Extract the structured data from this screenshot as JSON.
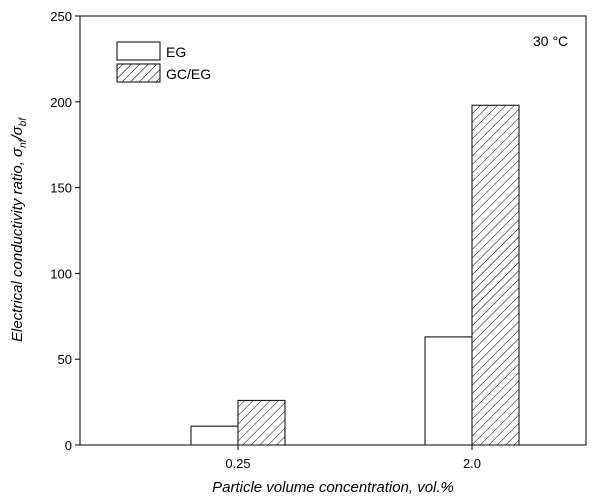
{
  "chart_data": {
    "type": "bar",
    "xlabel": "Particle volume concentration, vol.%",
    "ylabel_prefix": "Electrical conductivity ratio, ",
    "ylabel_sigma1": "σ",
    "ylabel_sub1": "nf",
    "ylabel_slash": "/",
    "ylabel_sigma2": "σ",
    "ylabel_sub2": "bf",
    "annotation": "30 °C",
    "categories": [
      "0.25",
      "2.0"
    ],
    "series": [
      {
        "name": "EG",
        "values": [
          11,
          63
        ],
        "pattern": "none"
      },
      {
        "name": "GC/EG",
        "values": [
          26,
          198
        ],
        "pattern": "hatch"
      }
    ],
    "ylim": [
      0,
      250
    ],
    "yticks": [
      "0",
      "50",
      "100",
      "150",
      "200",
      "250"
    ],
    "grid": false,
    "legend_position": "top-left",
    "bar_color": "#ffffff",
    "edge_color": "#000000"
  }
}
